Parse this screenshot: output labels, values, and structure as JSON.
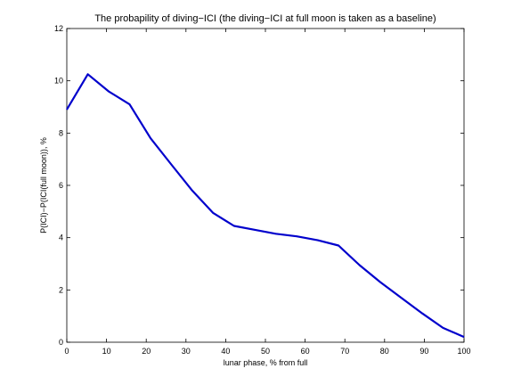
{
  "chart_data": {
    "type": "line",
    "title": "The probapility of diving−ICI (the diving−ICI at full moon is taken as a baseline)",
    "xlabel": "lunar phase, % from full",
    "ylabel": "P(ICI)−P(ICI(full moon)), %",
    "xlim": [
      0,
      100
    ],
    "ylim": [
      0,
      12
    ],
    "xticks": [
      0,
      10,
      20,
      30,
      40,
      50,
      60,
      70,
      80,
      90,
      100
    ],
    "yticks": [
      0,
      2,
      4,
      6,
      8,
      10,
      12
    ],
    "grid": false,
    "legend": "none",
    "series": [
      {
        "color": "#0000cc",
        "x": [
          0,
          5.3,
          10.5,
          15.8,
          21.1,
          26.3,
          31.6,
          36.8,
          42.1,
          47.4,
          52.6,
          57.9,
          63.2,
          68.4,
          73.7,
          78.9,
          84.2,
          89.5,
          94.7,
          100
        ],
        "y": [
          8.9,
          10.25,
          9.6,
          9.1,
          7.8,
          6.8,
          5.8,
          4.95,
          4.45,
          4.3,
          4.15,
          4.05,
          3.9,
          3.7,
          2.95,
          2.3,
          1.7,
          1.1,
          0.55,
          0.2
        ]
      }
    ]
  }
}
